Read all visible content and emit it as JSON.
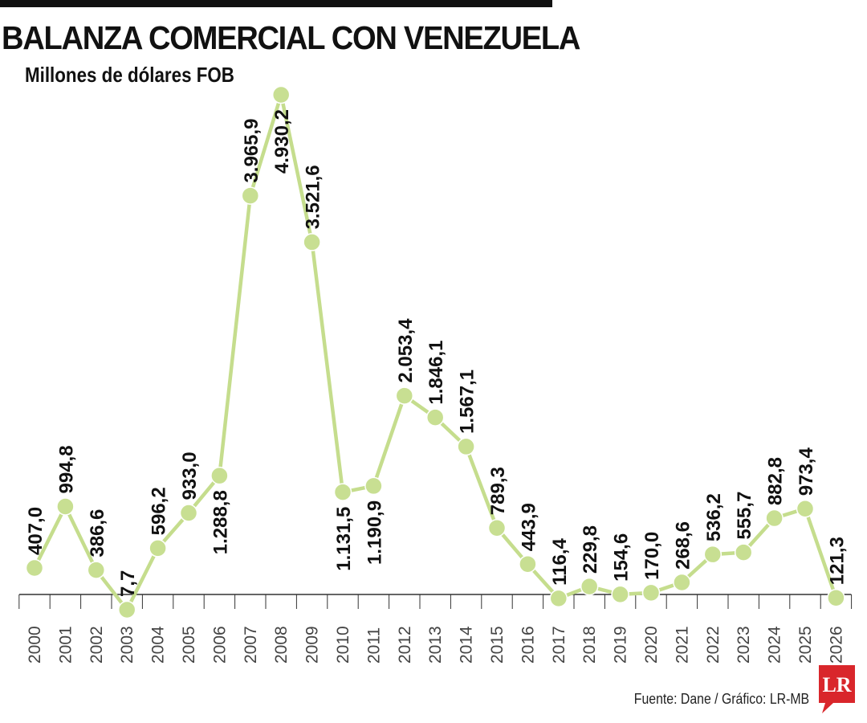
{
  "header": {
    "title": "BALANZA COMERCIAL CON VENEZUELA",
    "subtitle": "Millones de dólares FOB"
  },
  "footer": {
    "source": "Fuente: Dane / Gráfico: LR-MB",
    "logo_text": "LR"
  },
  "colors": {
    "line": "#c5dd8d",
    "marker": "#c8df92",
    "axis": "#333333",
    "text": "#111111",
    "logo": "#d9262b"
  },
  "chart_data": {
    "type": "line",
    "title": "BALANZA COMERCIAL CON VENEZUELA",
    "ylabel": "Millones de dólares FOB",
    "categories": [
      "2000",
      "2001",
      "2002",
      "2003",
      "2004",
      "2005",
      "2006",
      "2007",
      "2008",
      "2009",
      "2010",
      "2011",
      "2012",
      "2013",
      "2014",
      "2015",
      "2016",
      "2017",
      "2018",
      "2019",
      "2020",
      "2021",
      "2022",
      "2023",
      "2024",
      "2025",
      "2026"
    ],
    "values": [
      407.0,
      994.8,
      386.6,
      7.7,
      596.2,
      933.0,
      1288.8,
      3965.9,
      4930.2,
      3521.6,
      1131.5,
      1190.9,
      2053.4,
      1846.1,
      1567.1,
      789.3,
      443.9,
      116.4,
      229.8,
      154.6,
      170.0,
      268.6,
      536.2,
      555.7,
      882.8,
      973.4,
      121.3
    ],
    "labels": [
      "407,0",
      "994,8",
      "386,6",
      "7,7",
      "596,2",
      "933,0",
      "1.288,8",
      "3.965,9",
      "4.930,2",
      "3.521,6",
      "1.131,5",
      "1.190,9",
      "2.053,4",
      "1.846,1",
      "1.567,1",
      "789,3",
      "443,9",
      "116,4",
      "229,8",
      "154,6",
      "170,0",
      "268,6",
      "536,2",
      "555,7",
      "882,8",
      "973,4",
      "121,3"
    ],
    "ylim": [
      0,
      4930.2
    ],
    "grid": false,
    "legend": "none"
  }
}
